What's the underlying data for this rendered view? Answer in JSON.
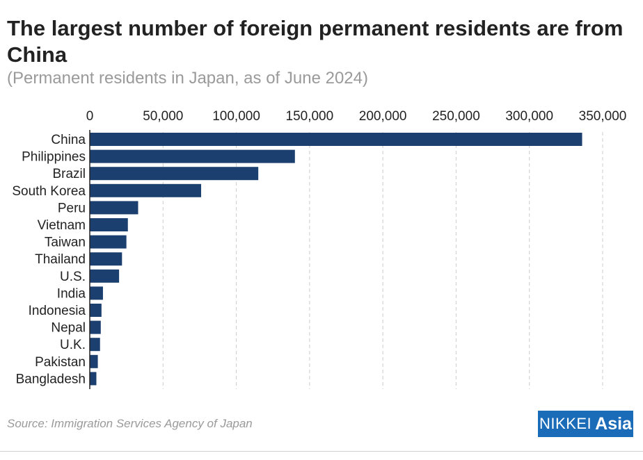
{
  "title": "The largest number of foreign permanent residents are from China",
  "subtitle": "(Permanent residents in Japan, as of June 2024)",
  "source": "Source: Immigration Services Agency of Japan",
  "logo": {
    "nikkei": "NIKKEI",
    "asia": "Asia"
  },
  "colors": {
    "bar": "#1b3f6e",
    "grid": "#cccccc",
    "title": "#222222",
    "muted": "#9a9a9a",
    "logo_bg": "#1a6bb8"
  },
  "chart_data": {
    "type": "bar",
    "orientation": "horizontal",
    "categories": [
      "China",
      "Philippines",
      "Brazil",
      "South Korea",
      "Peru",
      "Vietnam",
      "Taiwan",
      "Thailand",
      "U.S.",
      "India",
      "Indonesia",
      "Nepal",
      "U.K.",
      "Pakistan",
      "Bangladesh"
    ],
    "values": [
      336000,
      140000,
      115000,
      76000,
      33000,
      26000,
      25000,
      22000,
      20000,
      9000,
      8000,
      7500,
      7000,
      5500,
      4500
    ],
    "xlim": [
      0,
      350000
    ],
    "ticks": [
      0,
      50000,
      100000,
      150000,
      200000,
      250000,
      300000,
      350000
    ],
    "tick_labels": [
      "0",
      "50,000",
      "100,000",
      "150,000",
      "200,000",
      "250,000",
      "300,000",
      "350,000"
    ],
    "xlabel": "",
    "ylabel": "",
    "grid": true,
    "axis_position": "top"
  }
}
